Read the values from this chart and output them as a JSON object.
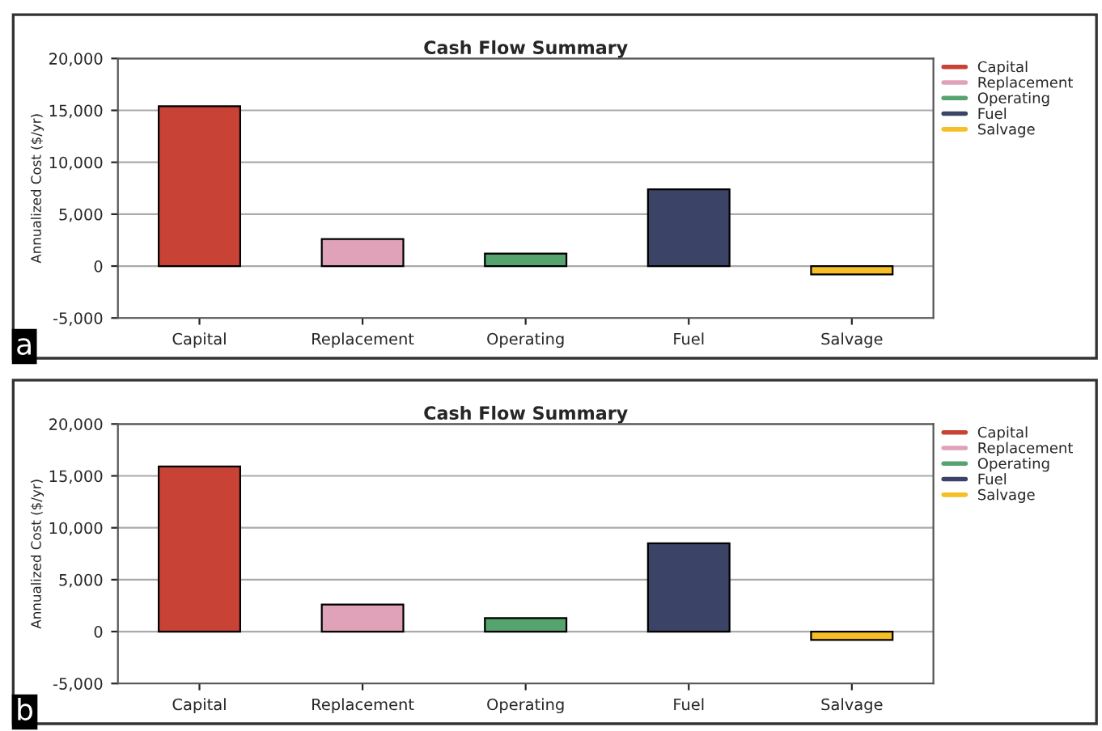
{
  "chart_data": [
    {
      "type": "bar",
      "title": "Cash Flow Summary",
      "ylabel": "Annualized Cost ($/yr)",
      "categories": [
        "Capital",
        "Replacement",
        "Operating",
        "Fuel",
        "Salvage"
      ],
      "series": [
        {
          "name": "Capital",
          "color": "#c84236",
          "values": [
            15400,
            null,
            null,
            null,
            null
          ]
        },
        {
          "name": "Replacement",
          "color": "#e0a2b8",
          "values": [
            null,
            2600,
            null,
            null,
            null
          ]
        },
        {
          "name": "Operating",
          "color": "#55a36e",
          "values": [
            null,
            null,
            1200,
            null,
            null
          ]
        },
        {
          "name": "Fuel",
          "color": "#3b4366",
          "values": [
            null,
            null,
            null,
            7400,
            null
          ]
        },
        {
          "name": "Salvage",
          "color": "#f6bf26",
          "values": [
            null,
            null,
            null,
            null,
            -800
          ]
        }
      ],
      "ylim": [
        -5000,
        20000
      ],
      "yticks": [
        {
          "value": -5000,
          "label": "-5,000"
        },
        {
          "value": 0,
          "label": "0"
        },
        {
          "value": 5000,
          "label": "5,000"
        },
        {
          "value": 10000,
          "label": "10,000"
        },
        {
          "value": 15000,
          "label": "15,000"
        },
        {
          "value": 20000,
          "label": "20,000"
        }
      ],
      "grid": "y",
      "legend": "top right",
      "annotations": [
        "a"
      ]
    },
    {
      "type": "bar",
      "title": "Cash Flow Summary",
      "ylabel": "Annualized Cost ($/yr)",
      "categories": [
        "Capital",
        "Replacement",
        "Operating",
        "Fuel",
        "Salvage"
      ],
      "series": [
        {
          "name": "Capital",
          "color": "#c84236",
          "values": [
            15900,
            null,
            null,
            null,
            null
          ]
        },
        {
          "name": "Replacement",
          "color": "#e0a2b8",
          "values": [
            null,
            2600,
            null,
            null,
            null
          ]
        },
        {
          "name": "Operating",
          "color": "#55a36e",
          "values": [
            null,
            null,
            1300,
            null,
            null
          ]
        },
        {
          "name": "Fuel",
          "color": "#3b4366",
          "values": [
            null,
            null,
            null,
            8500,
            null
          ]
        },
        {
          "name": "Salvage",
          "color": "#f6bf26",
          "values": [
            null,
            null,
            null,
            null,
            -800
          ]
        }
      ],
      "ylim": [
        -5000,
        20000
      ],
      "yticks": [
        {
          "value": -5000,
          "label": "-5,000"
        },
        {
          "value": 0,
          "label": "0"
        },
        {
          "value": 5000,
          "label": "5,000"
        },
        {
          "value": 10000,
          "label": "10,000"
        },
        {
          "value": 15000,
          "label": "15,000"
        },
        {
          "value": 20000,
          "label": "20,000"
        }
      ],
      "grid": "y",
      "legend": "top right",
      "annotations": [
        "b"
      ]
    }
  ]
}
